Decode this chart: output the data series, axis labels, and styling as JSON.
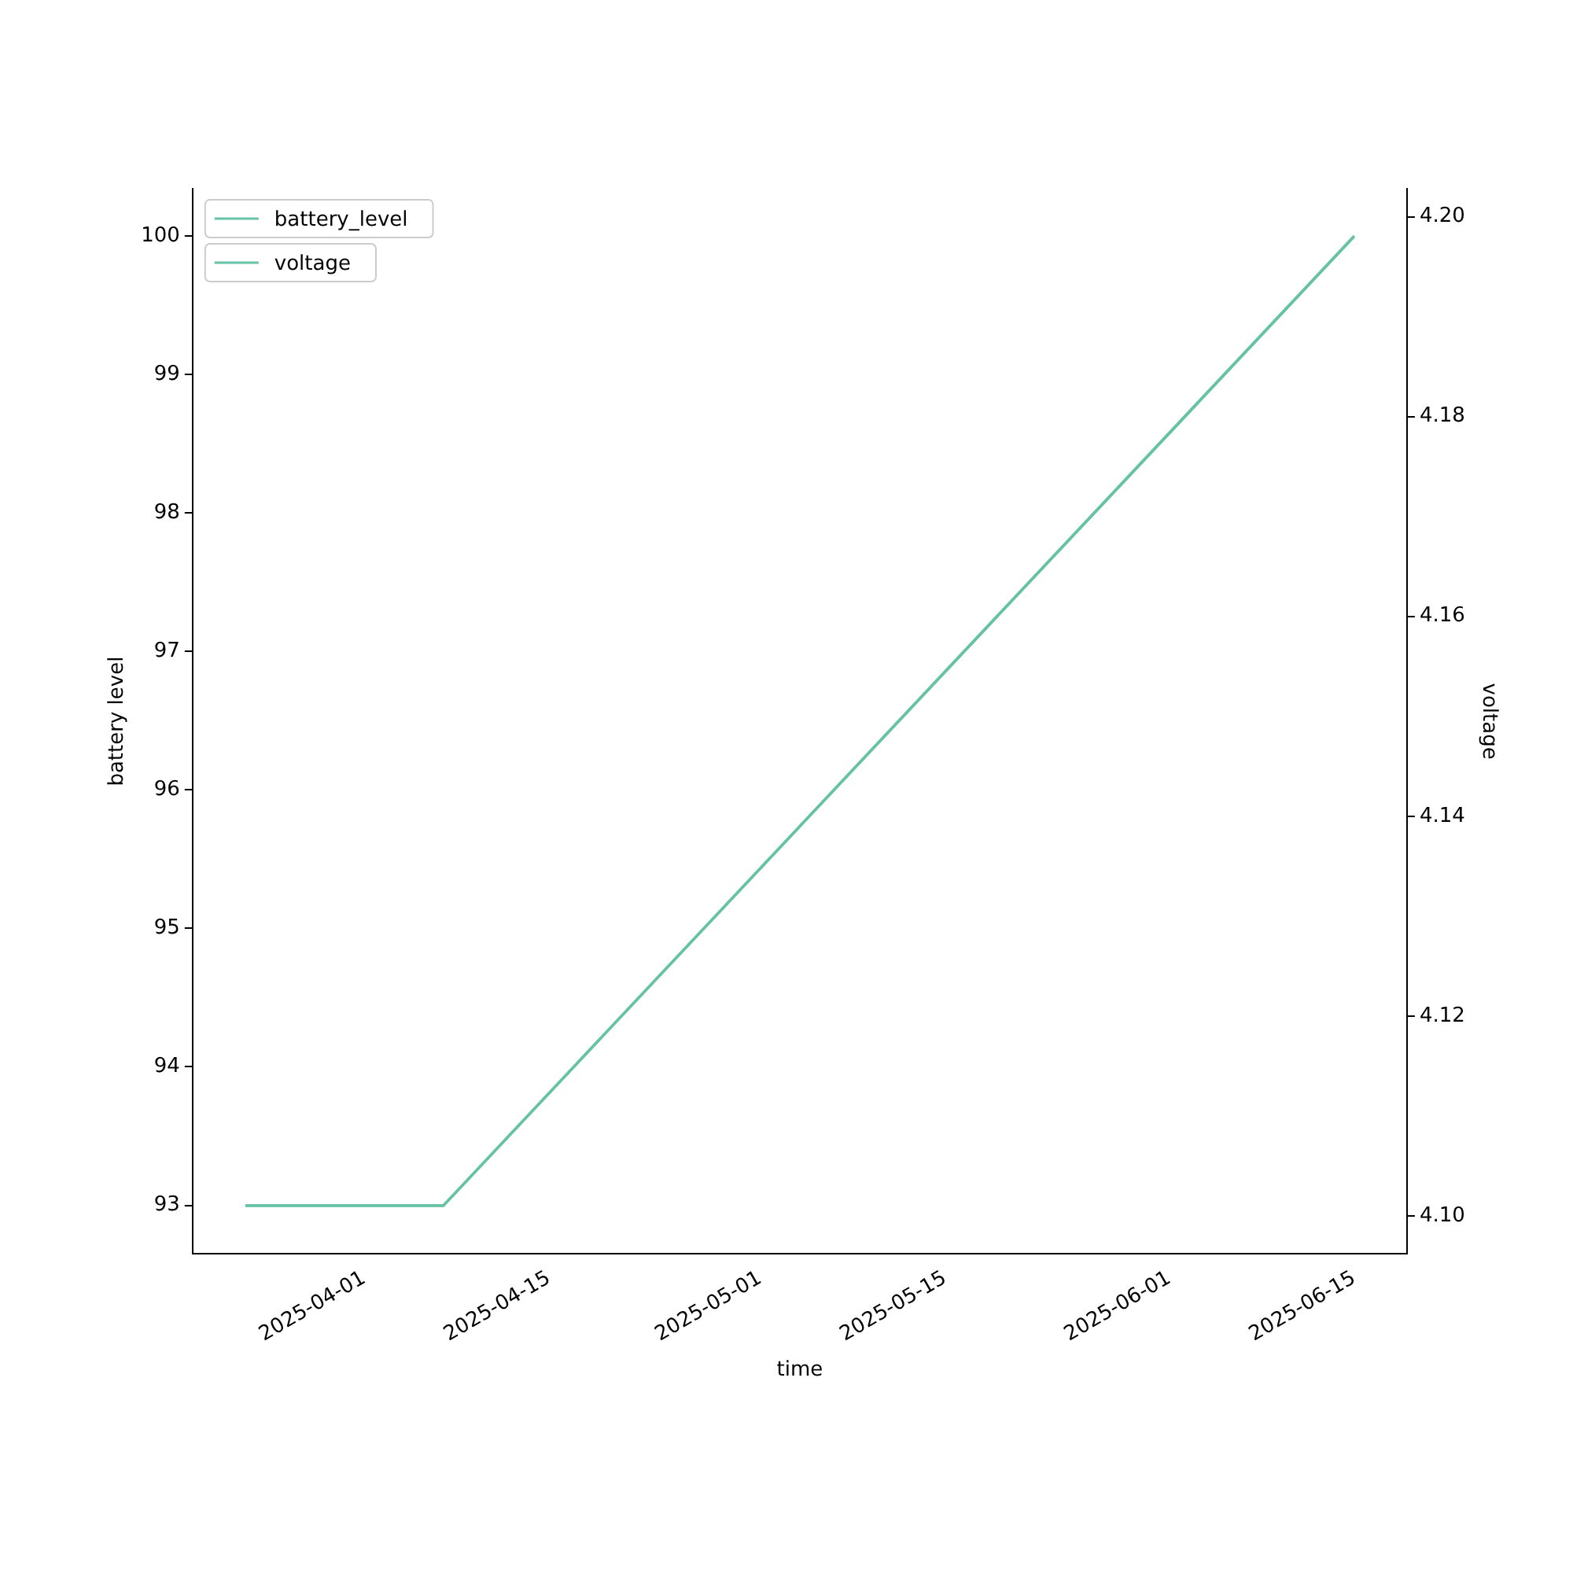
{
  "chart_data": {
    "type": "line",
    "xlabel": "time",
    "ylabel": "battery level",
    "y2label": "voltage",
    "x": [
      "2025-03-23",
      "2025-04-07",
      "2025-06-15"
    ],
    "series": [
      {
        "name": "battery_level",
        "color": "#66c2a5",
        "values": [
          93,
          93,
          100
        ]
      },
      {
        "name": "voltage",
        "color": "#66c2a5",
        "axis": "y2",
        "values": [
          4.101,
          4.101,
          4.198
        ]
      }
    ],
    "xlim": [
      "2025-03-19",
      "2025-06-19"
    ],
    "xticks": [
      "2025-04-01",
      "2025-04-15",
      "2025-05-01",
      "2025-05-15",
      "2025-06-01",
      "2025-06-15"
    ],
    "ylim": [
      92.65,
      100.34
    ],
    "yticks": [
      93,
      94,
      95,
      96,
      97,
      98,
      99,
      100
    ],
    "y2lim": [
      4.0962,
      4.2028
    ],
    "y2ticks": [
      {
        "value": 4.1,
        "label": "4.10"
      },
      4.12,
      4.14,
      4.16,
      4.18,
      {
        "value": 4.2,
        "label": "4.20"
      }
    ],
    "legend": "top left",
    "grid": false,
    "marker": "none",
    "line_style": "solid"
  }
}
